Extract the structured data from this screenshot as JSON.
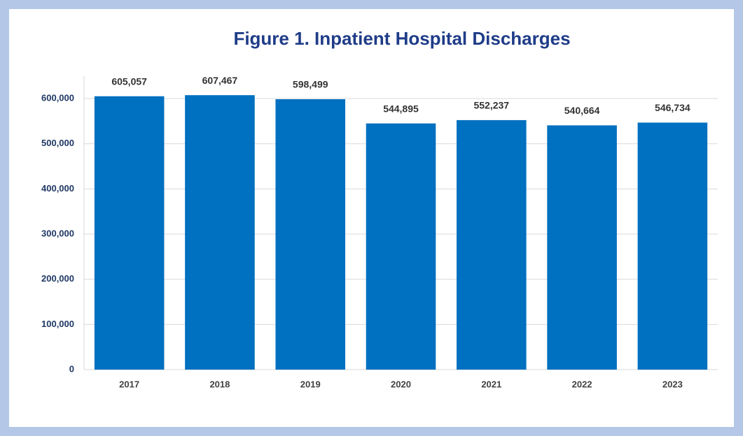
{
  "chart_data": {
    "type": "bar",
    "title": "Figure 1. Inpatient Hospital Discharges",
    "categories": [
      "2017",
      "2018",
      "2019",
      "2020",
      "2021",
      "2022",
      "2023"
    ],
    "values": [
      605057,
      607467,
      598499,
      544895,
      552237,
      540664,
      546734
    ],
    "value_labels": [
      "605,057",
      "607,467",
      "598,499",
      "544,895",
      "552,237",
      "540,664",
      "546,734"
    ],
    "color": "#0070c0",
    "ylim": [
      0,
      650000
    ],
    "yticks": [
      0,
      {
        "value": 100000,
        "label": "100,000"
      },
      {
        "value": 200000,
        "label": "200,000"
      },
      {
        "value": 300000,
        "label": "300,000"
      },
      {
        "value": 400000,
        "label": "400,000"
      },
      {
        "value": 500000,
        "label": "500,000"
      },
      {
        "value": 600000,
        "label": "600,000"
      }
    ],
    "grid": true
  }
}
